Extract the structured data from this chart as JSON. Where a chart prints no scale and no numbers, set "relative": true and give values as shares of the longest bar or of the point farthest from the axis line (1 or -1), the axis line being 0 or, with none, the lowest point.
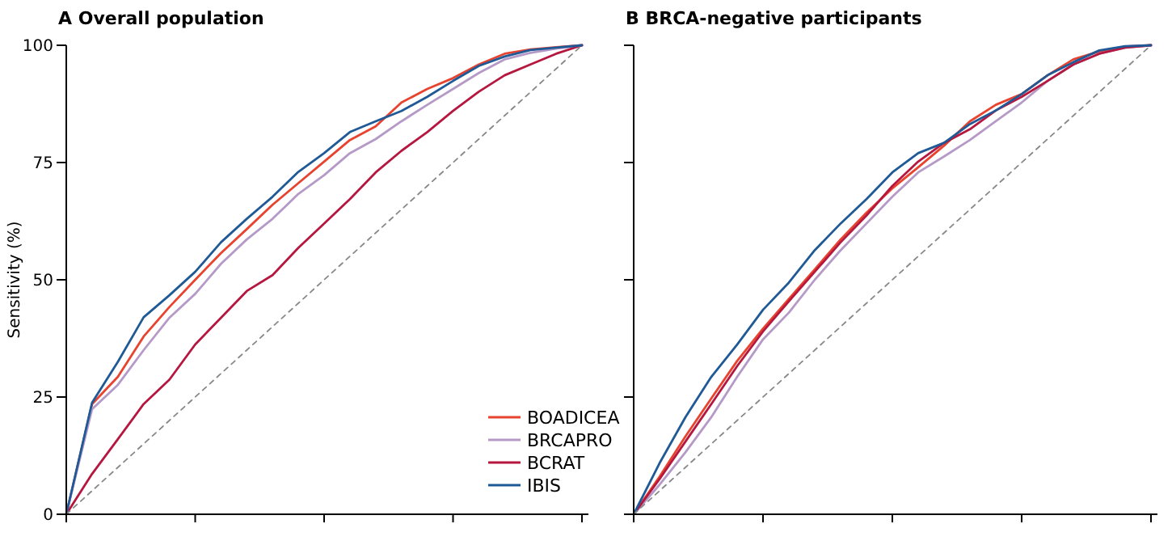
{
  "chart_data": [
    {
      "type": "line",
      "title": "A Overall population",
      "ylabel": "Sensitivity (%)",
      "categories": [
        null,
        null,
        null,
        null,
        null,
        null,
        null,
        null,
        null,
        null,
        null,
        null,
        null,
        null,
        null,
        null,
        null,
        null,
        null,
        null,
        null
      ],
      "ylim": [
        0,
        100
      ],
      "yticks": [
        0,
        25,
        50,
        75,
        100
      ],
      "tick_labels": "y",
      "legend": "bottom right",
      "series": [
        {
          "name": "BOADICEA",
          "color": "#e8432e",
          "values": [
            0,
            23.5,
            29.3,
            37.9,
            44.2,
            50,
            55.7,
            60.8,
            66,
            70.6,
            75.2,
            79.8,
            82.7,
            87.8,
            90.7,
            93,
            95.9,
            98.2,
            99.1,
            99.6,
            100
          ]
        },
        {
          "name": "BRCAPRO",
          "color": "#b59ac8",
          "values": [
            0,
            22.4,
            27.6,
            35,
            41.9,
            47,
            53.4,
            58.6,
            63,
            68.3,
            72.3,
            77,
            80,
            83.8,
            87.3,
            90.7,
            94.1,
            97,
            98.4,
            99.3,
            100
          ]
        },
        {
          "name": "BCRAT",
          "color": "#b5173f",
          "values": [
            0,
            8.6,
            16,
            23.5,
            28.7,
            36.2,
            41.9,
            47.6,
            51,
            56.8,
            62,
            67.2,
            72.9,
            77.5,
            81.5,
            86,
            90.1,
            93.6,
            95.9,
            98.2,
            100
          ]
        },
        {
          "name": "IBIS",
          "color": "#1f5a96",
          "values": [
            0,
            23.8,
            32.5,
            42,
            46.7,
            51.7,
            58,
            63,
            67.7,
            73,
            77,
            81.5,
            83.8,
            86,
            89,
            92.4,
            95.6,
            97.6,
            99,
            99.5,
            100
          ]
        },
        {
          "color": "#888888",
          "line_style": "dashed",
          "values": [
            0,
            5,
            10,
            15,
            20,
            25,
            30,
            35,
            40,
            45,
            50,
            55,
            60,
            65,
            70,
            75,
            80,
            85,
            90,
            95,
            100
          ]
        }
      ]
    },
    {
      "type": "line",
      "title": "B BRCA-negative participants",
      "categories": [
        null,
        null,
        null,
        null,
        null,
        null,
        null,
        null,
        null,
        null,
        null,
        null,
        null,
        null,
        null,
        null,
        null,
        null,
        null,
        null,
        null
      ],
      "relative": true,
      "series": [
        {
          "color": "#e8432e",
          "values": [
            0,
            0.08,
            0.166,
            0.247,
            0.327,
            0.396,
            0.459,
            0.522,
            0.586,
            0.643,
            0.695,
            0.74,
            0.786,
            0.838,
            0.873,
            0.896,
            0.936,
            0.97,
            0.987,
            0.997,
            1
          ]
        },
        {
          "color": "#b59ac8",
          "values": [
            0,
            0.063,
            0.132,
            0.207,
            0.293,
            0.373,
            0.43,
            0.5,
            0.563,
            0.62,
            0.677,
            0.729,
            0.763,
            0.798,
            0.838,
            0.878,
            0.924,
            0.959,
            0.982,
            0.995,
            1
          ]
        },
        {
          "color": "#b5173f",
          "values": [
            0,
            0.075,
            0.155,
            0.235,
            0.316,
            0.39,
            0.454,
            0.517,
            0.58,
            0.637,
            0.7,
            0.752,
            0.792,
            0.821,
            0.861,
            0.89,
            0.924,
            0.959,
            0.982,
            0.995,
            1
          ]
        },
        {
          "color": "#1f5a96",
          "values": [
            0,
            0.109,
            0.207,
            0.293,
            0.362,
            0.436,
            0.494,
            0.563,
            0.62,
            0.672,
            0.729,
            0.77,
            0.792,
            0.832,
            0.861,
            0.896,
            0.936,
            0.964,
            0.989,
            0.998,
            1
          ]
        },
        {
          "color": "#888888",
          "line_style": "dashed",
          "values": [
            0,
            0.05,
            0.1,
            0.15,
            0.2,
            0.25,
            0.3,
            0.35,
            0.4,
            0.45,
            0.5,
            0.55,
            0.6,
            0.65,
            0.7,
            0.75,
            0.8,
            0.85,
            0.9,
            0.95,
            1
          ]
        }
      ]
    }
  ]
}
